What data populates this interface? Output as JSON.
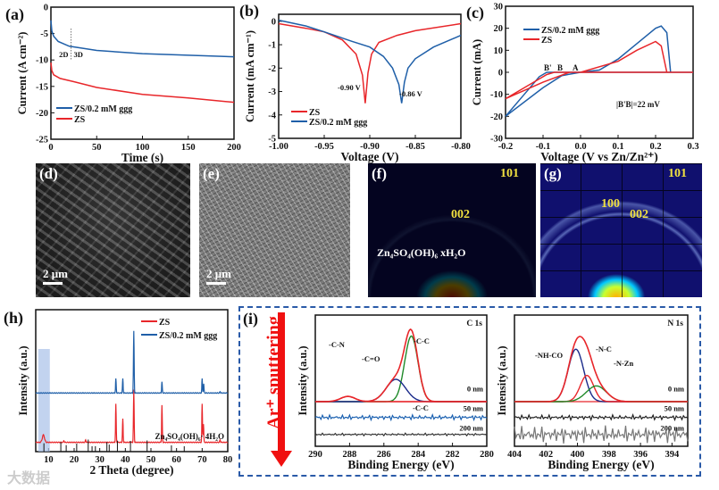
{
  "panel_labels": {
    "a": "(a)",
    "b": "(b)",
    "c": "(c)",
    "d": "(d)",
    "e": "(e)",
    "f": "(f)",
    "g": "(g)",
    "h": "(h)",
    "i": "(i)"
  },
  "colors": {
    "blue": "#1f5fa8",
    "red": "#e8262a",
    "green": "#1f8a2a",
    "navy": "#1a2a8a"
  },
  "chart_data": [
    {
      "id": "a",
      "type": "line",
      "xlabel": "Time (s)",
      "ylabel": "Current (A cm⁻²)",
      "xlim": [
        0,
        200
      ],
      "ylim": [
        -25,
        0
      ],
      "xticks": [
        "0",
        "50",
        "100",
        "150",
        "200"
      ],
      "yticks": [
        "0",
        "-5",
        "-10",
        "-15",
        "-20",
        "-25"
      ],
      "annotations": [
        "2D",
        "3D"
      ],
      "legend": "bottom-left",
      "series": [
        {
          "name": "ZS/0.2 mM ggg",
          "color": "blue",
          "points": [
            [
              0,
              -2.5
            ],
            [
              1,
              -4.5
            ],
            [
              3,
              -5.5
            ],
            [
              8,
              -6.5
            ],
            [
              20,
              -7.4
            ],
            [
              50,
              -8.2
            ],
            [
              100,
              -8.8
            ],
            [
              150,
              -9.1
            ],
            [
              200,
              -9.4
            ]
          ]
        },
        {
          "name": "ZS",
          "color": "red",
          "points": [
            [
              0,
              -10.5
            ],
            [
              1,
              -12
            ],
            [
              3,
              -12.8
            ],
            [
              10,
              -13.5
            ],
            [
              25,
              -14.1
            ],
            [
              50,
              -15.2
            ],
            [
              100,
              -16.5
            ],
            [
              150,
              -17.2
            ],
            [
              200,
              -18
            ]
          ]
        }
      ]
    },
    {
      "id": "b",
      "type": "line",
      "xlabel": "Voltage (V)",
      "ylabel": "Current (mA cm⁻¹)",
      "xlim": [
        -1.0,
        -0.8
      ],
      "ylim": [
        -5,
        0.3
      ],
      "xticks": [
        "-1.00",
        "-0.95",
        "-0.90",
        "-0.85",
        "-0.80"
      ],
      "yticks": [
        "0",
        "-1",
        "-2",
        "-3",
        "-4",
        "-5"
      ],
      "annotations": [
        "-0.90 V",
        "-0.86 V"
      ],
      "legend": "bottom-left",
      "series": [
        {
          "name": "ZS",
          "color": "red",
          "points": [
            [
              -1,
              -0.1
            ],
            [
              -0.97,
              -0.3
            ],
            [
              -0.95,
              -0.45
            ],
            [
              -0.93,
              -0.8
            ],
            [
              -0.915,
              -1.4
            ],
            [
              -0.908,
              -2.3
            ],
            [
              -0.905,
              -3.5
            ],
            [
              -0.902,
              -2.2
            ],
            [
              -0.898,
              -1.4
            ],
            [
              -0.89,
              -0.9
            ],
            [
              -0.87,
              -0.6
            ],
            [
              -0.85,
              -0.4
            ],
            [
              -0.8,
              -0.1
            ]
          ]
        },
        {
          "name": "ZS/0.2 mM ggg",
          "color": "blue",
          "points": [
            [
              -1,
              0.05
            ],
            [
              -0.97,
              -0.2
            ],
            [
              -0.95,
              -0.45
            ],
            [
              -0.92,
              -0.85
            ],
            [
              -0.9,
              -1.1
            ],
            [
              -0.885,
              -1.5
            ],
            [
              -0.875,
              -2
            ],
            [
              -0.868,
              -2.7
            ],
            [
              -0.865,
              -3.5
            ],
            [
              -0.862,
              -2.6
            ],
            [
              -0.858,
              -2
            ],
            [
              -0.85,
              -1.6
            ],
            [
              -0.83,
              -1.1
            ],
            [
              -0.8,
              -0.6
            ]
          ]
        }
      ]
    },
    {
      "id": "c",
      "type": "line",
      "xlabel": "Voltage (V vs Zn/Zn²⁺)",
      "ylabel": "Current (mA)",
      "xlim": [
        -0.2,
        0.3
      ],
      "ylim": [
        -30,
        30
      ],
      "xticks": [
        "-0.2",
        "-0.1",
        "0.0",
        "0.1",
        "0.2",
        "0.3"
      ],
      "yticks": [
        "30",
        "20",
        "10",
        "0",
        "-10",
        "-20",
        "-30"
      ],
      "annotations": [
        "B'",
        "B",
        "A",
        "|B'B|=22 mV"
      ],
      "legend": "top-left",
      "series": [
        {
          "name": "ZS/0.2 mM ggg",
          "color": "blue",
          "points": [
            [
              -0.2,
              -20
            ],
            [
              -0.15,
              -10
            ],
            [
              -0.11,
              -2
            ],
            [
              -0.09,
              0
            ],
            [
              0,
              0
            ],
            [
              0.05,
              1
            ],
            [
              0.1,
              6
            ],
            [
              0.15,
              13
            ],
            [
              0.2,
              20
            ],
            [
              0.215,
              21
            ],
            [
              0.23,
              18
            ],
            [
              0.24,
              0
            ],
            [
              0.3,
              0
            ],
            [
              0.24,
              0
            ],
            [
              0,
              0
            ],
            [
              -0.05,
              -1.5
            ],
            [
              -0.1,
              -7
            ],
            [
              -0.2,
              -20
            ]
          ]
        },
        {
          "name": "ZS",
          "color": "red",
          "points": [
            [
              -0.2,
              -12
            ],
            [
              -0.12,
              -4
            ],
            [
              -0.09,
              -1
            ],
            [
              -0.07,
              0
            ],
            [
              0,
              0
            ],
            [
              0.1,
              5
            ],
            [
              0.15,
              10
            ],
            [
              0.2,
              14
            ],
            [
              0.215,
              12
            ],
            [
              0.23,
              0
            ],
            [
              0.3,
              0
            ],
            [
              0.23,
              0
            ],
            [
              -0.03,
              0
            ],
            [
              -0.1,
              -4.5
            ],
            [
              -0.2,
              -12
            ]
          ]
        }
      ]
    },
    {
      "id": "h",
      "type": "line",
      "xlabel": "2 Theta (degree)",
      "ylabel": "Intensity (a.u.)",
      "xlim": [
        5,
        80
      ],
      "xticks": [
        "10",
        "20",
        "30",
        "40",
        "50",
        "60",
        "70",
        "80"
      ],
      "reference": "Zn₄SO₄(OH)₆· 4H₂O",
      "reference_peaks": [
        8.2,
        14.8,
        16.9,
        21,
        25.5,
        27,
        28.3,
        32.8,
        33.7,
        36.9,
        42,
        48.5,
        58,
        63
      ],
      "series": [
        {
          "name": "ZS",
          "color": "red",
          "peaks": [
            [
              8,
              0.12
            ],
            [
              16,
              0.03
            ],
            [
              24.5,
              0.04
            ],
            [
              36.3,
              0.62
            ],
            [
              39,
              0.38
            ],
            [
              43.3,
              0.85
            ],
            [
              54.3,
              0.6
            ],
            [
              70,
              0.62
            ],
            [
              70.5,
              0.3
            ],
            [
              77,
              0.04
            ]
          ]
        },
        {
          "name": "ZS/0.2 mM ggg",
          "color": "blue",
          "peaks": [
            [
              36.3,
              0.23
            ],
            [
              39,
              0.23
            ],
            [
              43.3,
              1.0
            ],
            [
              54.3,
              0.18
            ],
            [
              70,
              0.23
            ],
            [
              70.6,
              0.15
            ],
            [
              77,
              0.02
            ]
          ]
        }
      ]
    },
    {
      "id": "i1",
      "type": "line",
      "title": "C 1s",
      "xlabel": "Binding Energy (eV)",
      "ylabel": "Intensity (a.u.)",
      "xlim": [
        290,
        280
      ],
      "xticks": [
        "290",
        "288",
        "286",
        "284",
        "282",
        "280"
      ],
      "components": [
        "-C=O",
        "-C-N",
        "-C-C"
      ],
      "depths": [
        "0 nm",
        "50 nm",
        "200 nm"
      ],
      "label_50": "-C-C"
    },
    {
      "id": "i2",
      "type": "line",
      "title": "N 1s",
      "xlabel": "Binding Energy (eV)",
      "ylabel": "Intensity (a.u.)",
      "xlim": [
        404,
        393
      ],
      "xticks": [
        "404",
        "402",
        "400",
        "398",
        "396",
        "394"
      ],
      "components": [
        "-NH-CO",
        "-N-C",
        "-N-Zn"
      ],
      "depths": [
        "0 nm",
        "50 nm",
        "200 nm"
      ]
    }
  ],
  "images": {
    "d_scale": "2 μm",
    "e_scale": "2 μm",
    "f_labels": [
      "101",
      "002",
      "Zn₄SO₄(OH)₆ xH₂O"
    ],
    "g_labels": [
      "101",
      "100",
      "002"
    ]
  },
  "sputter_label": "Ar⁺ sputtering",
  "watermark": "大数据"
}
